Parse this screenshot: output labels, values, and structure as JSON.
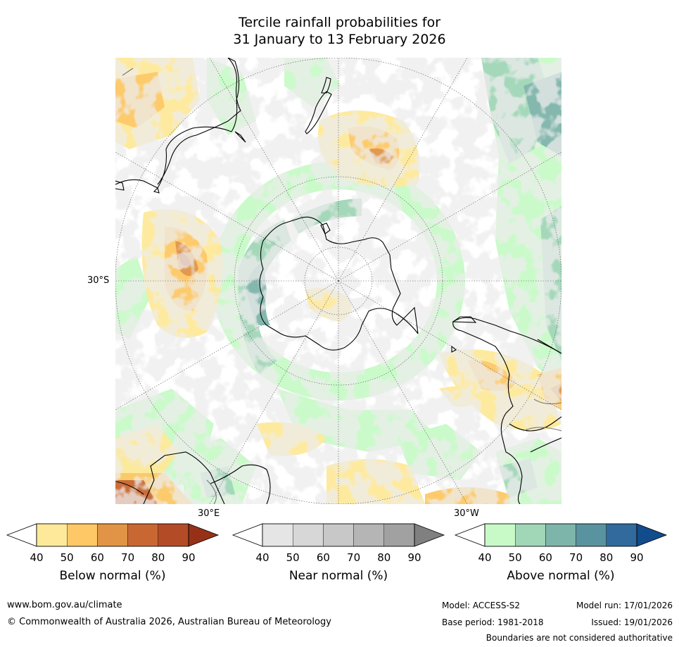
{
  "title": {
    "line1": "Tercile rainfall probabilities for",
    "line2": "31 January to 13 February 2026"
  },
  "map": {
    "labels": {
      "lat": "30°S",
      "lon_east": "30°E",
      "lon_west": "30°W"
    }
  },
  "colorbars": [
    {
      "id": "below",
      "title": "Below normal (%)",
      "ticks": [
        "40",
        "50",
        "60",
        "70",
        "80",
        "90"
      ],
      "colors": [
        "#ffffff",
        "#fee99a",
        "#fdc865",
        "#e19446",
        "#c96732",
        "#b34b27",
        "#963118"
      ]
    },
    {
      "id": "near",
      "title": "Near normal (%)",
      "ticks": [
        "40",
        "50",
        "60",
        "70",
        "80",
        "90"
      ],
      "colors": [
        "#ffffff",
        "#e5e5e5",
        "#d7d7d7",
        "#c8c8c8",
        "#b5b5b5",
        "#a1a1a1",
        "#808080"
      ]
    },
    {
      "id": "above",
      "title": "Above normal (%)",
      "ticks": [
        "40",
        "50",
        "60",
        "70",
        "80",
        "90"
      ],
      "colors": [
        "#ffffff",
        "#c8fac8",
        "#a1d6b7",
        "#7eb5aa",
        "#5a93a0",
        "#326a9d",
        "#124c8c"
      ]
    }
  ],
  "footer": {
    "url": "www.bom.gov.au/climate",
    "copyright": "© Commonwealth of Australia 2026, Australian Bureau of Meteorology",
    "model": "Model: ACCESS-S2",
    "base_period": "Base period: 1981-2018",
    "model_run": "Model run: 17/01/2026",
    "issued": "Issued: 19/01/2026",
    "disclaimer": "Boundaries are not considered authoritative"
  }
}
